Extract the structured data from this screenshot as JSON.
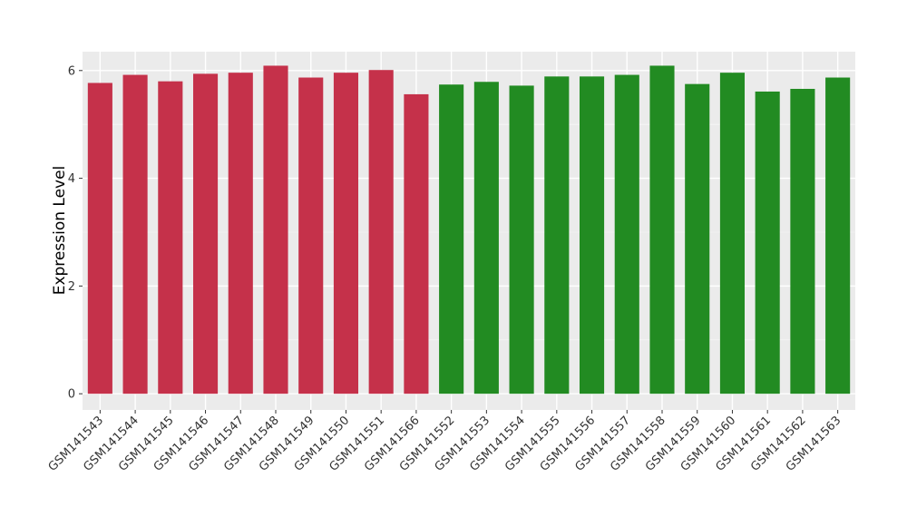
{
  "chart_data": {
    "type": "bar",
    "title": "",
    "xlabel": "",
    "ylabel": "Expression Level",
    "ylim": [
      -0.3,
      6.35
    ],
    "yticks": [
      0,
      2,
      4,
      6
    ],
    "grid": true,
    "background_color": "#EBEBEB",
    "group_colors": [
      "#C5314A",
      "#228B22"
    ],
    "categories": [
      "GSM141543",
      "GSM141544",
      "GSM141545",
      "GSM141546",
      "GSM141547",
      "GSM141548",
      "GSM141549",
      "GSM141550",
      "GSM141551",
      "GSM141566",
      "GSM141552",
      "GSM141553",
      "GSM141554",
      "GSM141555",
      "GSM141556",
      "GSM141557",
      "GSM141558",
      "GSM141559",
      "GSM141560",
      "GSM141561",
      "GSM141562",
      "GSM141563"
    ],
    "values": [
      5.77,
      5.92,
      5.8,
      5.94,
      5.96,
      6.09,
      5.87,
      5.96,
      6.01,
      5.56,
      5.74,
      5.79,
      5.72,
      5.89,
      5.89,
      5.92,
      6.09,
      5.75,
      5.96,
      5.61,
      5.66,
      5.87
    ],
    "groups": [
      0,
      0,
      0,
      0,
      0,
      0,
      0,
      0,
      0,
      0,
      1,
      1,
      1,
      1,
      1,
      1,
      1,
      1,
      1,
      1,
      1,
      1
    ]
  }
}
